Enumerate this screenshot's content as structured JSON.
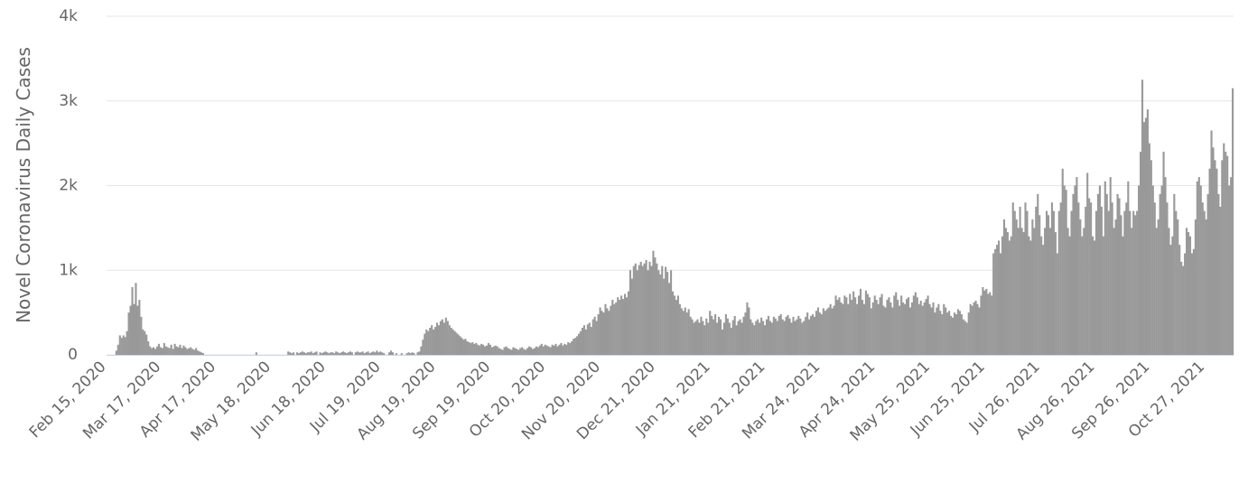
{
  "chart_data": {
    "type": "bar",
    "y_label": "Novel Coronavirus Daily Cases",
    "color": "#999999",
    "grid": true,
    "ylim": [
      0,
      4000
    ],
    "yticks": [
      0,
      {
        "value": 1000,
        "label": "1k"
      },
      {
        "value": 2000,
        "label": "2k"
      },
      {
        "value": 3000,
        "label": "3k"
      },
      {
        "value": 4000,
        "label": "4k"
      }
    ],
    "categories": [
      "Feb 15, 2020",
      null,
      null,
      null,
      null,
      null,
      null,
      null,
      null,
      null,
      null,
      null,
      null,
      null,
      null,
      null,
      null,
      null,
      null,
      null,
      null,
      null,
      null,
      null,
      null,
      null,
      null,
      null,
      null,
      null,
      null,
      "Mar 17, 2020",
      null,
      null,
      null,
      null,
      null,
      null,
      null,
      null,
      null,
      null,
      null,
      null,
      null,
      null,
      null,
      null,
      null,
      null,
      null,
      null,
      null,
      null,
      null,
      null,
      null,
      null,
      null,
      null,
      null,
      null,
      "Apr 17, 2020",
      null,
      null,
      null,
      null,
      null,
      null,
      null,
      null,
      null,
      null,
      null,
      null,
      null,
      null,
      null,
      null,
      null,
      null,
      null,
      null,
      null,
      null,
      null,
      null,
      null,
      null,
      null,
      null,
      null,
      null,
      "May 18, 2020",
      null,
      null,
      null,
      null,
      null,
      null,
      null,
      null,
      null,
      null,
      null,
      null,
      null,
      null,
      null,
      null,
      null,
      null,
      null,
      null,
      null,
      null,
      null,
      null,
      null,
      null,
      null,
      null,
      null,
      null,
      "Jun 18, 2020",
      null,
      null,
      null,
      null,
      null,
      null,
      null,
      null,
      null,
      null,
      null,
      null,
      null,
      null,
      null,
      null,
      null,
      null,
      null,
      null,
      null,
      null,
      null,
      null,
      null,
      null,
      null,
      null,
      null,
      null,
      "Jul 19, 2020",
      null,
      null,
      null,
      null,
      null,
      null,
      null,
      null,
      null,
      null,
      null,
      null,
      null,
      null,
      null,
      null,
      null,
      null,
      null,
      null,
      null,
      null,
      null,
      null,
      null,
      null,
      null,
      null,
      null,
      null,
      "Aug 19, 2020",
      null,
      null,
      null,
      null,
      null,
      null,
      null,
      null,
      null,
      null,
      null,
      null,
      null,
      null,
      null,
      null,
      null,
      null,
      null,
      null,
      null,
      null,
      null,
      null,
      null,
      null,
      null,
      null,
      null,
      null,
      "Sep 19, 2020",
      null,
      null,
      null,
      null,
      null,
      null,
      null,
      null,
      null,
      null,
      null,
      null,
      null,
      null,
      null,
      null,
      null,
      null,
      null,
      null,
      null,
      null,
      null,
      null,
      null,
      null,
      null,
      null,
      null,
      null,
      "Oct 20, 2020",
      null,
      null,
      null,
      null,
      null,
      null,
      null,
      null,
      null,
      null,
      null,
      null,
      null,
      null,
      null,
      null,
      null,
      null,
      null,
      null,
      null,
      null,
      null,
      null,
      null,
      null,
      null,
      null,
      null,
      null,
      "Nov 20, 2020",
      null,
      null,
      null,
      null,
      null,
      null,
      null,
      null,
      null,
      null,
      null,
      null,
      null,
      null,
      null,
      null,
      null,
      null,
      null,
      null,
      null,
      null,
      null,
      null,
      null,
      null,
      null,
      null,
      null,
      null,
      "Dec 21, 2020",
      null,
      null,
      null,
      null,
      null,
      null,
      null,
      null,
      null,
      null,
      null,
      null,
      null,
      null,
      null,
      null,
      null,
      null,
      null,
      null,
      null,
      null,
      null,
      null,
      null,
      null,
      null,
      null,
      null,
      null,
      "Jan 21, 2021",
      null,
      null,
      null,
      null,
      null,
      null,
      null,
      null,
      null,
      null,
      null,
      null,
      null,
      null,
      null,
      null,
      null,
      null,
      null,
      null,
      null,
      null,
      null,
      null,
      null,
      null,
      null,
      null,
      null,
      null,
      "Feb 21, 2021",
      null,
      null,
      null,
      null,
      null,
      null,
      null,
      null,
      null,
      null,
      null,
      null,
      null,
      null,
      null,
      null,
      null,
      null,
      null,
      null,
      null,
      null,
      null,
      null,
      null,
      null,
      null,
      null,
      null,
      null,
      "Mar 24, 2021",
      null,
      null,
      null,
      null,
      null,
      null,
      null,
      null,
      null,
      null,
      null,
      null,
      null,
      null,
      null,
      null,
      null,
      null,
      null,
      null,
      null,
      null,
      null,
      null,
      null,
      null,
      null,
      null,
      null,
      null,
      "Apr 24, 2021",
      null,
      null,
      null,
      null,
      null,
      null,
      null,
      null,
      null,
      null,
      null,
      null,
      null,
      null,
      null,
      null,
      null,
      null,
      null,
      null,
      null,
      null,
      null,
      null,
      null,
      null,
      null,
      null,
      null,
      null,
      "May 25, 2021",
      null,
      null,
      null,
      null,
      null,
      null,
      null,
      null,
      null,
      null,
      null,
      null,
      null,
      null,
      null,
      null,
      null,
      null,
      null,
      null,
      null,
      null,
      null,
      null,
      null,
      null,
      null,
      null,
      null,
      null,
      "Jun 25, 2021",
      null,
      null,
      null,
      null,
      null,
      null,
      null,
      null,
      null,
      null,
      null,
      null,
      null,
      null,
      null,
      null,
      null,
      null,
      null,
      null,
      null,
      null,
      null,
      null,
      null,
      null,
      null,
      null,
      null,
      null,
      "Jul 26, 2021",
      null,
      null,
      null,
      null,
      null,
      null,
      null,
      null,
      null,
      null,
      null,
      null,
      null,
      null,
      null,
      null,
      null,
      null,
      null,
      null,
      null,
      null,
      null,
      null,
      null,
      null,
      null,
      null,
      null,
      null,
      "Aug 26, 2021",
      null,
      null,
      null,
      null,
      null,
      null,
      null,
      null,
      null,
      null,
      null,
      null,
      null,
      null,
      null,
      null,
      null,
      null,
      null,
      null,
      null,
      null,
      null,
      null,
      null,
      null,
      null,
      null,
      null,
      null,
      "Sep 26, 2021",
      null,
      null,
      null,
      null,
      null,
      null,
      null,
      null,
      null,
      null,
      null,
      null,
      null,
      null,
      null,
      null,
      null,
      null,
      null,
      null,
      null,
      null,
      null,
      null,
      null,
      null,
      null,
      null,
      null,
      null,
      "Oct 27, 2021",
      null,
      null,
      null,
      null,
      null,
      null,
      null,
      null,
      null,
      null,
      null,
      null,
      null,
      null,
      null
    ],
    "values": [
      0,
      0,
      0,
      0,
      0,
      50,
      120,
      230,
      200,
      230,
      210,
      280,
      500,
      580,
      800,
      600,
      850,
      580,
      650,
      450,
      300,
      280,
      240,
      160,
      100,
      80,
      90,
      70,
      100,
      130,
      90,
      80,
      140,
      100,
      90,
      80,
      120,
      70,
      130,
      100,
      90,
      120,
      80,
      110,
      90,
      70,
      80,
      90,
      70,
      60,
      80,
      50,
      40,
      30,
      20,
      0,
      0,
      0,
      0,
      0,
      0,
      0,
      0,
      0,
      0,
      0,
      0,
      0,
      0,
      0,
      0,
      0,
      0,
      0,
      0,
      0,
      0,
      0,
      0,
      0,
      0,
      0,
      0,
      0,
      30,
      0,
      0,
      0,
      0,
      0,
      0,
      0,
      0,
      0,
      0,
      0,
      0,
      0,
      0,
      0,
      0,
      0,
      40,
      30,
      20,
      30,
      0,
      30,
      20,
      30,
      40,
      30,
      20,
      30,
      30,
      40,
      20,
      30,
      40,
      0,
      30,
      20,
      30,
      40,
      30,
      20,
      30,
      30,
      20,
      40,
      30,
      20,
      30,
      40,
      30,
      20,
      30,
      40,
      30,
      0,
      30,
      40,
      30,
      30,
      40,
      20,
      30,
      40,
      20,
      30,
      40,
      30,
      50,
      30,
      40,
      30,
      20,
      0,
      0,
      30,
      50,
      30,
      0,
      20,
      0,
      0,
      20,
      0,
      0,
      20,
      30,
      20,
      30,
      20,
      0,
      30,
      40,
      100,
      180,
      250,
      300,
      280,
      320,
      350,
      300,
      330,
      380,
      350,
      400,
      420,
      380,
      440,
      400,
      350,
      320,
      300,
      280,
      260,
      240,
      220,
      200,
      180,
      190,
      160,
      150,
      140,
      150,
      130,
      140,
      120,
      110,
      130,
      120,
      100,
      110,
      140,
      120,
      90,
      100,
      110,
      100,
      80,
      70,
      60,
      90,
      100,
      80,
      70,
      60,
      90,
      80,
      70,
      60,
      80,
      90,
      70,
      60,
      80,
      100,
      90,
      70,
      80,
      100,
      90,
      110,
      130,
      100,
      120,
      110,
      100,
      90,
      120,
      110,
      130,
      100,
      120,
      140,
      110,
      130,
      120,
      150,
      140,
      160,
      190,
      200,
      220,
      250,
      280,
      320,
      350,
      300,
      360,
      380,
      330,
      420,
      450,
      400,
      480,
      560,
      520,
      500,
      600,
      550,
      520,
      580,
      650,
      600,
      620,
      680,
      650,
      700,
      660,
      720,
      680,
      750,
      1000,
      900,
      1050,
      1080,
      1000,
      1060,
      1100,
      1050,
      1080,
      1120,
      1000,
      1100,
      1050,
      1230,
      1150,
      1080,
      1000,
      950,
      1050,
      900,
      1040,
      980,
      850,
      1000,
      750,
      700,
      650,
      700,
      600,
      550,
      520,
      560,
      500,
      540,
      450,
      420,
      380,
      400,
      420,
      380,
      450,
      400,
      350,
      430,
      380,
      520,
      460,
      420,
      480,
      380,
      450,
      420,
      300,
      380,
      480,
      430,
      380,
      320,
      410,
      460,
      350,
      400,
      420,
      380,
      450,
      500,
      620,
      560,
      420,
      380,
      350,
      400,
      420,
      380,
      440,
      400,
      350,
      420,
      460,
      400,
      380,
      450,
      430,
      400,
      460,
      480,
      420,
      400,
      450,
      470,
      430,
      380,
      450,
      400,
      420,
      460,
      430,
      380,
      400,
      450,
      500,
      420,
      460,
      480,
      450,
      520,
      560,
      500,
      480,
      550,
      520,
      540,
      560,
      600,
      550,
      580,
      700,
      650,
      680,
      620,
      600,
      700,
      680,
      600,
      720,
      650,
      750,
      680,
      600,
      700,
      780,
      650,
      600,
      760,
      720,
      680,
      550,
      620,
      700,
      650,
      600,
      680,
      720,
      580,
      560,
      650,
      680,
      620,
      560,
      700,
      740,
      650,
      580,
      700,
      620,
      600,
      660,
      680,
      560,
      620,
      700,
      740,
      680,
      600,
      640,
      580,
      620,
      660,
      700,
      600,
      560,
      620,
      500,
      560,
      600,
      520,
      480,
      600,
      560,
      500,
      520,
      460,
      440,
      500,
      480,
      540,
      520,
      480,
      420,
      400,
      380,
      500,
      600,
      580,
      620,
      640,
      600,
      560,
      700,
      800,
      760,
      780,
      720,
      740,
      700,
      1200,
      1250,
      1300,
      1350,
      1200,
      1400,
      1600,
      1500,
      1450,
      1350,
      1400,
      1800,
      1700,
      1600,
      1500,
      1750,
      1500,
      1450,
      1800,
      1700,
      1400,
      1350,
      1600,
      1500,
      1750,
      1900,
      1650,
      1400,
      1300,
      1500,
      1700,
      1650,
      1500,
      1800,
      1700,
      1450,
      1200,
      1700,
      1800,
      2200,
      2000,
      1950,
      1500,
      1400,
      1700,
      1900,
      2000,
      2100,
      1800,
      1600,
      1400,
      1500,
      1750,
      2150,
      1850,
      1800,
      1400,
      1350,
      1700,
      1900,
      2000,
      1750,
      1400,
      2050,
      1900,
      1700,
      2100,
      1800,
      1500,
      1600,
      1900,
      1850,
      1650,
      1400,
      1700,
      1800,
      2050,
      1700,
      1500,
      1700,
      1650,
      1700,
      2000,
      2400,
      3250,
      2750,
      2800,
      2900,
      2500,
      2300,
      2000,
      1800,
      1500,
      1600,
      1900,
      2000,
      2400,
      2100,
      1800,
      1500,
      1300,
      1400,
      1900,
      1700,
      1600,
      1300,
      1100,
      1050,
      1200,
      1500,
      1450,
      1400,
      1200,
      1250,
      1600,
      2050,
      2100,
      2000,
      1800,
      1700,
      1600,
      1900,
      2200,
      2650,
      2450,
      2300,
      2200,
      1900,
      1750,
      2300,
      2500,
      2400,
      2350,
      2000,
      2100,
      3150
    ]
  }
}
